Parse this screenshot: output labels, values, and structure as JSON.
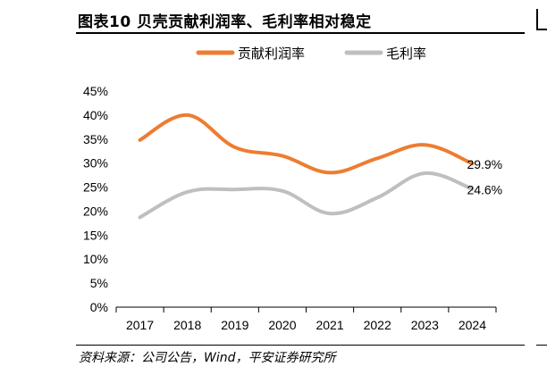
{
  "header": {
    "title": "图表10 贝壳贡献利润率、毛利率相对稳定"
  },
  "footer": {
    "source": "资料来源：公司公告，Wind，平安证券研究所"
  },
  "chart_data": {
    "type": "line",
    "title": "",
    "xlabel": "",
    "ylabel": "",
    "categories": [
      "2017",
      "2018",
      "2019",
      "2020",
      "2021",
      "2022",
      "2023",
      "2024"
    ],
    "ylim": [
      0,
      45
    ],
    "y_ticks": [
      "0%",
      "5%",
      "10%",
      "15%",
      "20%",
      "25%",
      "30%",
      "35%",
      "40%",
      "45%"
    ],
    "grid": false,
    "legend_position": "top",
    "smooth": true,
    "series": [
      {
        "name": "贡献利润率",
        "color": "#ED7D31",
        "values": [
          34.8,
          40.0,
          33.3,
          31.5,
          28.0,
          31.0,
          33.8,
          29.9
        ],
        "end_label": "29.9%"
      },
      {
        "name": "毛利率",
        "color": "#BFBFBF",
        "values": [
          18.7,
          24.0,
          24.5,
          24.2,
          19.5,
          22.8,
          27.9,
          24.6
        ],
        "end_label": "24.6%"
      }
    ]
  }
}
